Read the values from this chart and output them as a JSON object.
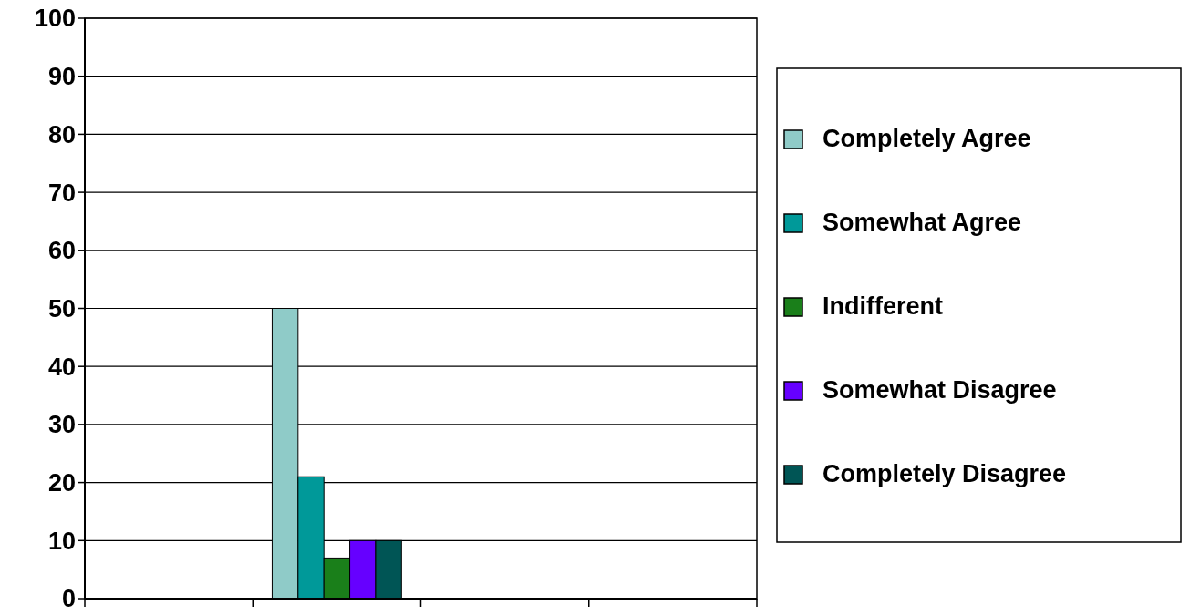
{
  "chart_data": {
    "type": "bar",
    "categories": [
      null,
      null,
      null,
      null
    ],
    "series": [
      {
        "name": "Completely Agree",
        "color": "#8fcbc8",
        "values": [
          null,
          50,
          null,
          null
        ]
      },
      {
        "name": "Somewhat Agree",
        "color": "#009999",
        "values": [
          null,
          21,
          null,
          null
        ]
      },
      {
        "name": "Indifferent",
        "color": "#1a7f1a",
        "values": [
          null,
          7,
          null,
          null
        ]
      },
      {
        "name": "Somewhat Disagree",
        "color": "#6600ff",
        "values": [
          null,
          10,
          null,
          null
        ]
      },
      {
        "name": "Completely Disagree",
        "color": "#005555",
        "values": [
          null,
          10,
          null,
          null
        ]
      }
    ],
    "ylim": [
      0,
      100
    ],
    "yticks": [
      0,
      10,
      20,
      30,
      40,
      50,
      60,
      70,
      80,
      90,
      100
    ],
    "grid": "y",
    "legend": "right"
  }
}
